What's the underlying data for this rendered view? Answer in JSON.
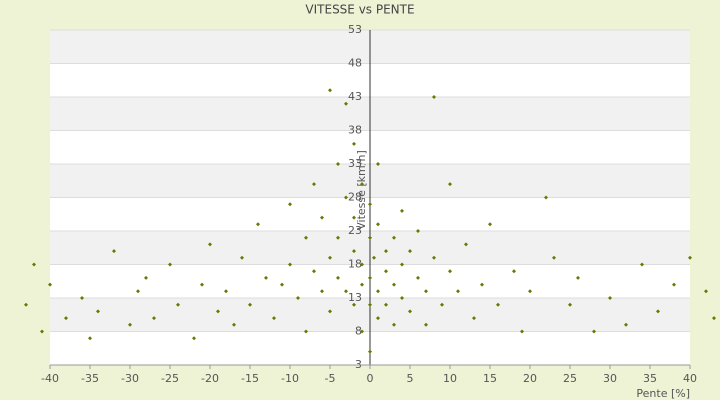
{
  "chart_data": {
    "type": "scatter",
    "title": "VITESSE vs PENTE",
    "x_label": "Pente [%]",
    "y_label": "Vitesse [km/h]",
    "color": "#6b7800",
    "xlim": [
      -40,
      40
    ],
    "xticks": [
      -40,
      -35,
      -30,
      -25,
      -20,
      -15,
      -10,
      -5,
      0,
      5,
      10,
      15,
      20,
      25,
      30,
      35,
      40
    ],
    "ylim": [
      3,
      53
    ],
    "yticks": [
      3,
      8,
      13,
      18,
      23,
      28,
      33,
      38,
      43,
      48,
      53
    ],
    "x": [
      -43,
      -42,
      -41,
      -40,
      -38,
      -36,
      -35,
      -34,
      -32,
      -30,
      -29,
      -28,
      -27,
      -25,
      -24,
      -22,
      -21,
      -20,
      -19,
      -18,
      -17,
      -16,
      -15,
      -14,
      -13,
      -12,
      -11,
      -10,
      -10,
      -9,
      -8,
      -8,
      -7,
      -7,
      -6,
      -6,
      -5,
      -5,
      -5,
      -4,
      -4,
      -4,
      -3,
      -3,
      -3,
      -2,
      -2,
      -2,
      -2,
      -1,
      -1,
      -1,
      -1,
      0,
      0,
      0,
      0,
      0,
      0.5,
      1,
      1,
      1,
      1,
      2,
      2,
      2,
      3,
      3,
      3,
      4,
      4,
      4,
      5,
      5,
      6,
      6,
      7,
      7,
      8,
      8,
      9,
      10,
      10,
      11,
      12,
      13,
      14,
      15,
      16,
      18,
      19,
      20,
      22,
      23,
      25,
      26,
      28,
      30,
      32,
      34,
      36,
      38,
      40,
      42,
      43
    ],
    "y": [
      12,
      18,
      8,
      15,
      10,
      13,
      7,
      11,
      20,
      9,
      14,
      16,
      10,
      18,
      12,
      7,
      15,
      21,
      11,
      14,
      9,
      19,
      12,
      24,
      16,
      10,
      15,
      27,
      18,
      13,
      22,
      8,
      17,
      30,
      14,
      25,
      19,
      44,
      11,
      33,
      22,
      16,
      28,
      14,
      42,
      20,
      36,
      12,
      25,
      18,
      30,
      15,
      8,
      22,
      27,
      16,
      12,
      5,
      19,
      24,
      14,
      33,
      10,
      20,
      17,
      12,
      22,
      15,
      9,
      26,
      18,
      13,
      20,
      11,
      16,
      23,
      14,
      9,
      19,
      43,
      12,
      17,
      30,
      14,
      21,
      10,
      15,
      24,
      12,
      17,
      8,
      14,
      28,
      19,
      12,
      16,
      8,
      13,
      9,
      18,
      11,
      15,
      19,
      14,
      10
    ]
  }
}
